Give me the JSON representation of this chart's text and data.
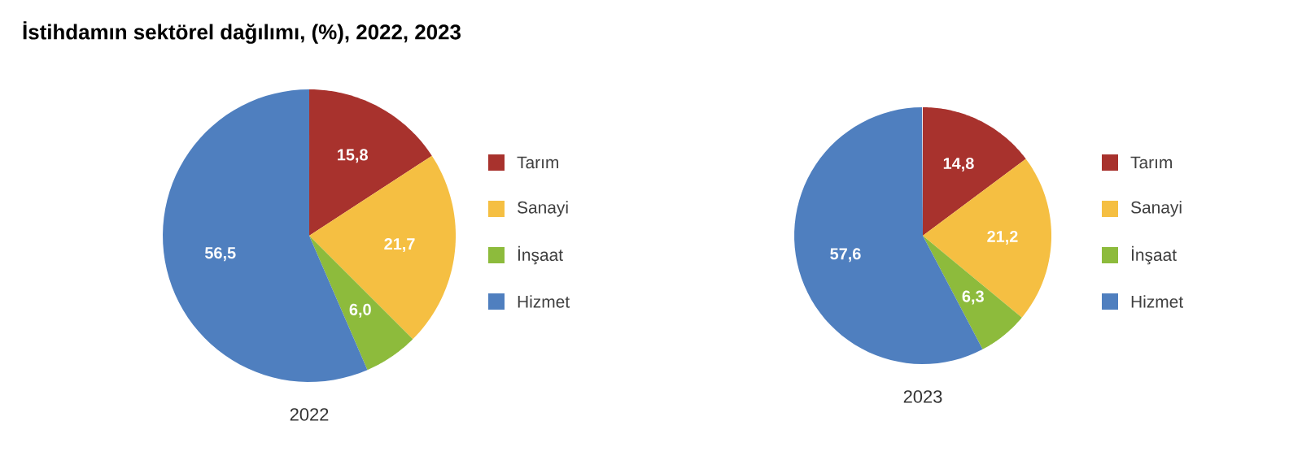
{
  "chart_data": [
    {
      "type": "pie",
      "title": "2022",
      "annotations": [
        "İstihdamın sektörel dağılımı, (%), 2022, 2023"
      ],
      "categories": [
        "Tarım",
        "Sanayi",
        "İnşaat",
        "Hizmet"
      ],
      "values": [
        15.8,
        21.7,
        6.0,
        56.5
      ],
      "value_labels": [
        "15,8",
        "21,7",
        "6,0",
        "56,5"
      ],
      "colors": [
        "#a8322d",
        "#f5bf42",
        "#8dbb3c",
        "#4f7fbf"
      ],
      "legend": "right"
    },
    {
      "type": "pie",
      "title": "2023",
      "categories": [
        "Tarım",
        "Sanayi",
        "İnşaat",
        "Hizmet"
      ],
      "values": [
        14.8,
        21.2,
        6.3,
        57.6
      ],
      "value_labels": [
        "14,8",
        "21,2",
        "6,3",
        "57,6"
      ],
      "colors": [
        "#a8322d",
        "#f5bf42",
        "#8dbb3c",
        "#4f7fbf"
      ],
      "legend": "right"
    }
  ]
}
